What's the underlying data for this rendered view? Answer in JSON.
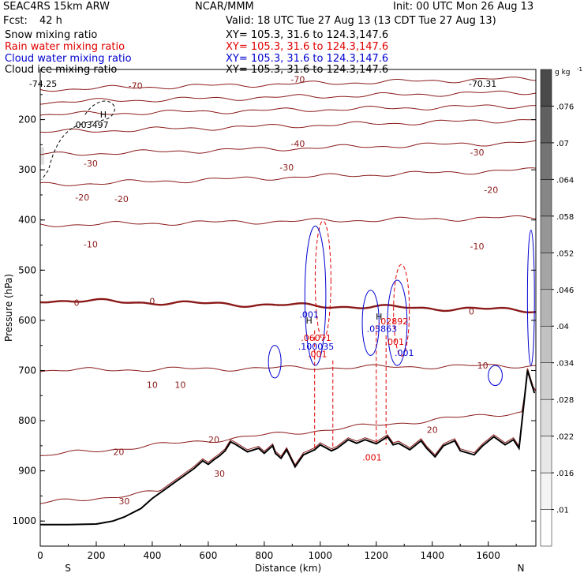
{
  "header": {
    "title": "SEAC4RS 15km ARW",
    "org": "NCAR/MMM",
    "init": "Init: 00 UTC Mon 26 Aug 13",
    "fcst_label": "Fcst:",
    "fcst_value": "42 h",
    "valid": "Valid: 18 UTC Tue 27 Aug 13 (13 CDT Tue 27 Aug 13)"
  },
  "legend": [
    {
      "name": "Snow mixing ratio",
      "xy": "XY= 105.3, 31.6 to 124.3,147.6",
      "color": "#000000"
    },
    {
      "name": "Rain water mixing ratio",
      "xy": "XY= 105.3, 31.6 to 124.3,147.6",
      "color": "#e00000"
    },
    {
      "name": "Cloud water mixing ratio",
      "xy": "XY= 105.3, 31.6 to 124.3,147.6",
      "color": "#0000d0"
    },
    {
      "name": "Cloud ice mixing ratio",
      "xy": "XY= 105.3, 31.6 to 124.3,147.6",
      "color": "#000000"
    }
  ],
  "colorbar": {
    "units": "g kg",
    "units_exp": "-1",
    "ticks": [
      ".01",
      ".016",
      ".022",
      ".028",
      ".034",
      ".04",
      ".046",
      ".052",
      ".058",
      ".064",
      ".07",
      ".076"
    ],
    "shades": [
      "#ffffff",
      "#f4f4f4",
      "#e8e8e8",
      "#dcdcdc",
      "#cfcfcf",
      "#c2c2c2",
      "#b4b4b4",
      "#a5a5a5",
      "#969696",
      "#868686",
      "#747474",
      "#606060",
      "#4a4a4a"
    ]
  },
  "chart_data": {
    "type": "contour",
    "xlabel": "Distance (km)",
    "ylabel": "Pressure (hPa)",
    "xlim": [
      0,
      1770
    ],
    "ylim": [
      1000,
      100
    ],
    "x_ticks": [
      "0",
      "200",
      "400",
      "600",
      "800",
      "1000",
      "1200",
      "1400",
      "1600"
    ],
    "y_ticks": [
      "200",
      "300",
      "400",
      "500",
      "600",
      "700",
      "800",
      "900",
      "1000"
    ],
    "left_end_label": "S",
    "right_end_label": "N",
    "temperature_contours_C": {
      "color": "#8b1a1a",
      "levels": [
        {
          "value": -70,
          "p_left": 140,
          "p_right": 118
        },
        {
          "value": -60,
          "p_left": 165,
          "p_right": 145
        },
        {
          "value": -50,
          "p_left": 190,
          "p_right": 172
        },
        {
          "value": -40,
          "p_left": 225,
          "p_right": 200
        },
        {
          "value": -30,
          "p_left": 270,
          "p_right": 245
        },
        {
          "value": -20,
          "p_left": 330,
          "p_right": 300
        },
        {
          "value": -10,
          "p_left": 410,
          "p_right": 395
        },
        {
          "value": 0,
          "p_left": 560,
          "p_right": 580
        },
        {
          "value": 10,
          "p_left": 700,
          "p_right": 690
        },
        {
          "value": 20,
          "p_left": 870,
          "p_right": 780
        },
        {
          "value": 30,
          "p_left": 965,
          "p_right": 870
        }
      ],
      "labels": [
        {
          "text": "-70",
          "x": 340,
          "p": 132
        },
        {
          "text": "-70",
          "x": 920,
          "p": 120
        },
        {
          "text": "-40",
          "x": 920,
          "p": 248
        },
        {
          "text": "-30",
          "x": 180,
          "p": 287
        },
        {
          "text": "-30",
          "x": 880,
          "p": 295
        },
        {
          "text": "-30",
          "x": 1560,
          "p": 265
        },
        {
          "text": "-20",
          "x": 150,
          "p": 355
        },
        {
          "text": "-20",
          "x": 290,
          "p": 358
        },
        {
          "text": "-20",
          "x": 1610,
          "p": 340
        },
        {
          "text": "-10",
          "x": 180,
          "p": 448
        },
        {
          "text": "-10",
          "x": 1560,
          "p": 452
        },
        {
          "text": "0",
          "x": 130,
          "p": 565
        },
        {
          "text": "0",
          "x": 400,
          "p": 562
        },
        {
          "text": "0",
          "x": 1540,
          "p": 582
        },
        {
          "text": "10",
          "x": 400,
          "p": 728
        },
        {
          "text": "10",
          "x": 500,
          "p": 728
        },
        {
          "text": "10",
          "x": 1580,
          "p": 690
        },
        {
          "text": "20",
          "x": 280,
          "p": 862
        },
        {
          "text": "20",
          "x": 620,
          "p": 838
        },
        {
          "text": "20",
          "x": 1400,
          "p": 818
        },
        {
          "text": "30",
          "x": 640,
          "p": 905
        },
        {
          "text": "30",
          "x": 300,
          "p": 960
        }
      ]
    },
    "rain_water_labels": [
      {
        "text": ".06071",
        "x": 985,
        "p": 635
      },
      {
        "text": ".001",
        "x": 990,
        "p": 667
      },
      {
        "text": ".02892",
        "x": 1260,
        "p": 602
      },
      {
        "text": ".001",
        "x": 1265,
        "p": 643
      },
      {
        "text": ".001",
        "x": 1185,
        "p": 873
      }
    ],
    "cloud_water_labels": [
      {
        "text": ".001",
        "x": 960,
        "p": 588
      },
      {
        "text": ".100035",
        "x": 985,
        "p": 652
      },
      {
        "text": ".03863",
        "x": 1220,
        "p": 617
      },
      {
        "text": ".001",
        "x": 1300,
        "p": 665
      }
    ],
    "snow_labels": [
      {
        "text": ".003497",
        "x": 180,
        "p": 210
      }
    ],
    "extrema_labels": [
      {
        "text": "H",
        "x": 225,
        "p": 190
      },
      {
        "text": "H",
        "x": 960,
        "p": 600
      },
      {
        "text": "H",
        "x": 1210,
        "p": 592
      }
    ],
    "corner_labels": [
      {
        "text": "-74.25",
        "x": 10,
        "p": 128
      },
      {
        "text": "-70.31",
        "x": 1580,
        "p": 128
      }
    ],
    "terrain_hPa": {
      "x": [
        0,
        100,
        200,
        230,
        260,
        300,
        360,
        400,
        450,
        500,
        550,
        580,
        600,
        620,
        640,
        660,
        680,
        700,
        740,
        780,
        800,
        830,
        840,
        860,
        880,
        910,
        940,
        980,
        1000,
        1040,
        1060,
        1100,
        1130,
        1160,
        1200,
        1240,
        1260,
        1280,
        1320,
        1360,
        1380,
        1410,
        1440,
        1480,
        1500,
        1550,
        1580,
        1620,
        1660,
        1690,
        1710,
        1740,
        1765
      ],
      "p": [
        1007,
        1007,
        1006,
        1003,
        1000,
        992,
        975,
        955,
        935,
        915,
        895,
        880,
        887,
        878,
        870,
        860,
        842,
        848,
        862,
        855,
        865,
        850,
        865,
        875,
        858,
        892,
        868,
        858,
        848,
        860,
        855,
        838,
        845,
        838,
        846,
        832,
        848,
        845,
        858,
        840,
        855,
        872,
        850,
        840,
        860,
        868,
        850,
        832,
        848,
        838,
        855,
        700,
        745
      ]
    },
    "cloud_water_contours": [
      {
        "x": [
          815,
          860
        ],
        "p": [
          650,
          715
        ]
      },
      {
        "x": [
          945,
          1020
        ],
        "p": [
          412,
          690
        ]
      },
      {
        "x": [
          1150,
          1210
        ],
        "p": [
          540,
          670
        ]
      },
      {
        "x": [
          1240,
          1310
        ],
        "p": [
          520,
          690
        ]
      },
      {
        "x": [
          1600,
          1650
        ],
        "p": [
          690,
          730
        ]
      },
      {
        "x": [
          1740,
          1765
        ],
        "p": [
          420,
          690
        ]
      }
    ],
    "rain_columns": [
      {
        "x": 980,
        "p_top": 620,
        "p_bottom": 858
      },
      {
        "x": 1045,
        "p_top": 680,
        "p_bottom": 858
      },
      {
        "x": 1200,
        "p_top": 610,
        "p_bottom": 848
      },
      {
        "x": 1235,
        "p_top": 630,
        "p_bottom": 848
      }
    ]
  }
}
